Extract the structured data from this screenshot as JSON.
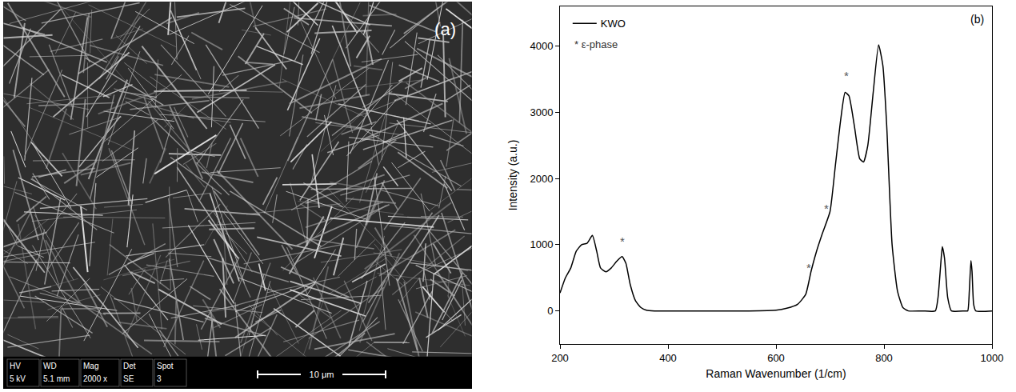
{
  "panel_a": {
    "label": "(a)",
    "info_bar": {
      "headers": [
        "HV",
        "WD",
        "Mag",
        "Det",
        "Spot"
      ],
      "values": [
        "5 kV",
        "5.1 mm",
        "2000 x",
        "SE",
        "3"
      ]
    },
    "scale_bar": "10 μm"
  },
  "chart_data": {
    "type": "line",
    "panel_label": "(b)",
    "xlabel": "Raman Wavenumber (1/cm)",
    "ylabel": "Intensity (a.u.)",
    "x": [
      200,
      210,
      220,
      230,
      240,
      250,
      260,
      268,
      275,
      285,
      295,
      305,
      315,
      322,
      330,
      340,
      350,
      360,
      375,
      400,
      450,
      500,
      550,
      600,
      620,
      640,
      655,
      665,
      675,
      685,
      700,
      710,
      720,
      728,
      735,
      745,
      755,
      762,
      770,
      780,
      790,
      798,
      805,
      815,
      825,
      835,
      845,
      870,
      895,
      900,
      905,
      908,
      912,
      918,
      925,
      950,
      955,
      958,
      961,
      963,
      966,
      970,
      1000
    ],
    "series": [
      {
        "name": "KWO",
        "color": "#000000",
        "line_style": "solid",
        "values": [
          270,
          500,
          650,
          900,
          1000,
          1020,
          1140,
          900,
          650,
          590,
          650,
          750,
          820,
          720,
          400,
          150,
          50,
          10,
          0,
          0,
          0,
          0,
          0,
          10,
          40,
          100,
          250,
          600,
          900,
          1150,
          1500,
          2200,
          2900,
          3300,
          3250,
          2800,
          2300,
          2250,
          2500,
          3300,
          4020,
          3700,
          2800,
          1000,
          300,
          50,
          0,
          0,
          0,
          200,
          700,
          970,
          800,
          200,
          0,
          0,
          0,
          300,
          760,
          600,
          100,
          0,
          0
        ]
      }
    ],
    "xlim": [
      200,
      1000
    ],
    "xticks": [
      200,
      400,
      600,
      800,
      1000
    ],
    "ylim": [
      -500,
      4600
    ],
    "yticks": [
      0,
      1000,
      2000,
      3000,
      4000
    ],
    "legend": "top left",
    "legend_note": "* ε-phase",
    "annotations": [
      {
        "x": 315,
        "y": 1050,
        "text": "*"
      },
      {
        "x": 660,
        "y": 650,
        "text": "*"
      },
      {
        "x": 693,
        "y": 1550,
        "text": "*"
      },
      {
        "x": 730,
        "y": 3550,
        "text": "*"
      }
    ],
    "grid": false
  }
}
